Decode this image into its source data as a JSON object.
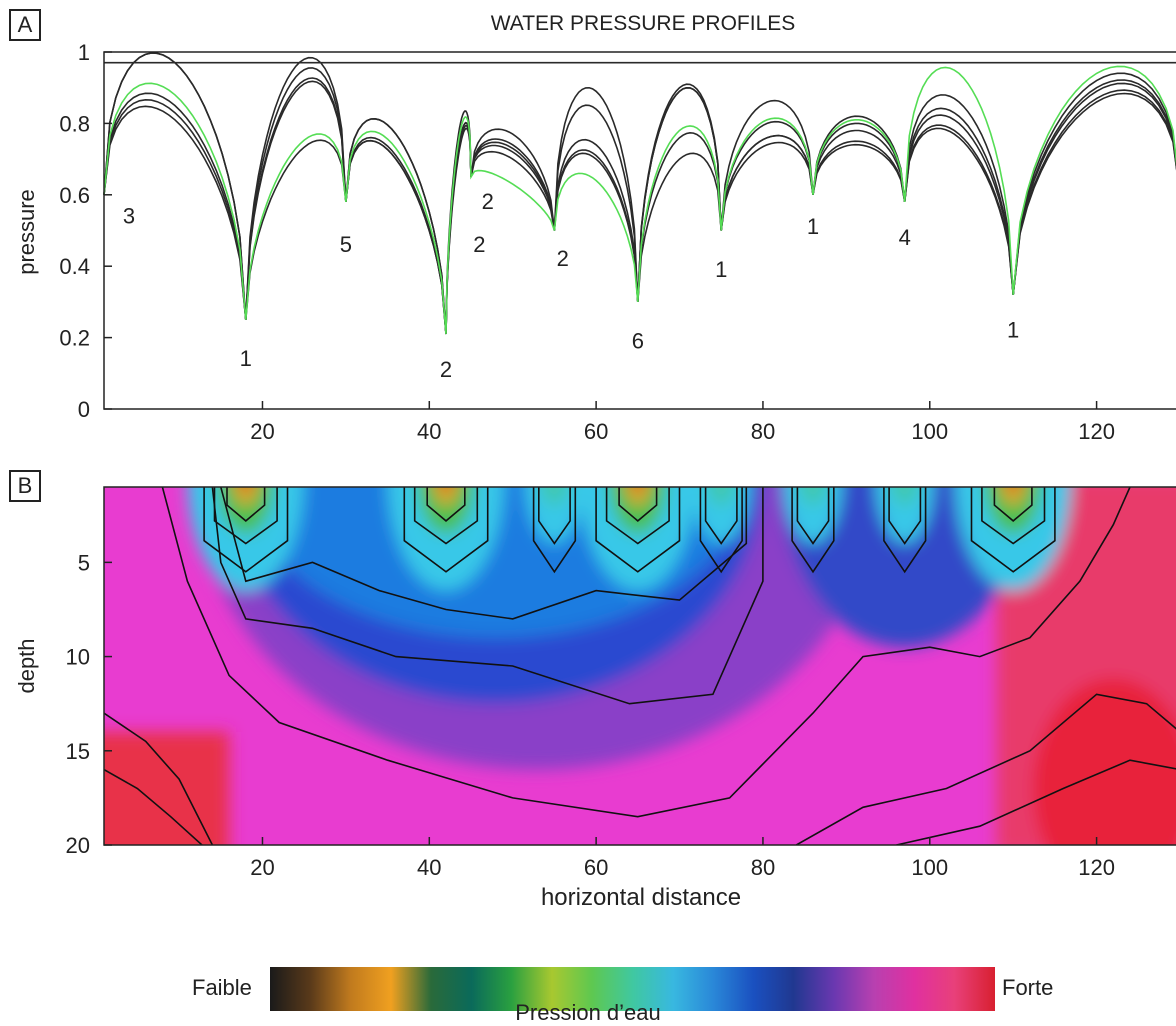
{
  "panel_a_label": "A",
  "panel_b_label": "B",
  "colors": {
    "profile_line": "#2a2a2a",
    "highlight_profile": "#55dd55",
    "contour": "#111111",
    "axis": "#222222"
  },
  "colorbar": {
    "low_label": "Faible",
    "high_label": "Forte",
    "title": "Pression d’eau",
    "stops": [
      "#1a1a1a",
      "#5a3a1a",
      "#c07a1e",
      "#f0a020",
      "#2a6a3a",
      "#0a6a5a",
      "#2aa040",
      "#a8c830",
      "#5ec850",
      "#40c8a0",
      "#38b8e0",
      "#2a88d8",
      "#1a50c0",
      "#203890",
      "#6a38b0",
      "#b840b0",
      "#e030a0",
      "#e8407a",
      "#d82030"
    ]
  },
  "chart_data": [
    {
      "type": "line",
      "title": "WATER PRESSURE PROFILES",
      "xlabel": "",
      "ylabel": "pressure",
      "xlim": [
        1,
        130
      ],
      "ylim": [
        0,
        1
      ],
      "xticks": [
        20,
        40,
        60,
        80,
        100,
        120
      ],
      "yticks": [
        0,
        0.2,
        0.4,
        0.6,
        0.8,
        1
      ],
      "ytick_labels": [
        "0",
        "0.2",
        "0.4",
        "0.6",
        "0.8",
        "1"
      ],
      "grid": false,
      "profile_peak_series": {
        "x_break": [
          1,
          18,
          30,
          42,
          45,
          55,
          65,
          75,
          86,
          97,
          110,
          130
        ],
        "y_break": [
          0.6,
          0.25,
          0.58,
          0.21,
          0.65,
          0.5,
          0.3,
          0.5,
          0.6,
          0.58,
          0.32,
          0.6
        ],
        "line_peaks": [
          [
            0.97,
            0.89,
            0.77,
            0.77,
            0.7,
            0.84,
            0.7,
            0.86,
            0.82,
            0.82,
            0.92
          ],
          [
            0.97,
            0.96,
            0.77,
            0.73,
            0.77,
            0.71,
            0.9,
            0.8,
            0.8,
            0.86,
            0.9
          ],
          [
            0.85,
            0.93,
            0.71,
            0.73,
            0.74,
            0.7,
            0.89,
            0.76,
            0.78,
            0.8,
            0.89
          ],
          [
            0.83,
            0.9,
            0.7,
            0.72,
            0.73,
            0.89,
            0.76,
            0.76,
            0.75,
            0.77,
            0.87
          ],
          [
            0.81,
            0.71,
            0.7,
            0.71,
            0.72,
            0.74,
            0.89,
            0.74,
            0.74,
            0.76,
            0.86
          ],
          [
            0.88,
            0.73,
            0.73,
            0.75,
            0.63,
            0.64,
            0.78,
            0.81,
            0.81,
            0.94,
            0.94
          ]
        ],
        "long_line": {
          "x": [
            1,
            130
          ],
          "y": [
            0.97,
            0.97
          ]
        }
      },
      "annotations": [
        {
          "text": "3",
          "x": 4,
          "y": 0.52
        },
        {
          "text": "1",
          "x": 18,
          "y": 0.12
        },
        {
          "text": "5",
          "x": 30,
          "y": 0.44
        },
        {
          "text": "2",
          "x": 42,
          "y": 0.09
        },
        {
          "text": "2",
          "x": 46,
          "y": 0.44
        },
        {
          "text": "2",
          "x": 47,
          "y": 0.56
        },
        {
          "text": "2",
          "x": 56,
          "y": 0.4
        },
        {
          "text": "6",
          "x": 65,
          "y": 0.17
        },
        {
          "text": "1",
          "x": 75,
          "y": 0.37
        },
        {
          "text": "1",
          "x": 86,
          "y": 0.49
        },
        {
          "text": "4",
          "x": 97,
          "y": 0.46
        },
        {
          "text": "1",
          "x": 110,
          "y": 0.2
        }
      ]
    },
    {
      "type": "heatmap",
      "title": "",
      "xlabel": "horizontal distance",
      "ylabel": "depth",
      "xlim": [
        1,
        130
      ],
      "ylim": [
        20,
        1
      ],
      "xticks": [
        20,
        40,
        60,
        80,
        100,
        120
      ],
      "yticks": [
        5,
        10,
        15,
        20
      ],
      "grid": false,
      "high_pressure_spots": [
        18,
        42,
        55,
        65,
        75,
        86,
        97,
        110
      ],
      "contour_levels_depth_at_x65": [
        3.5,
        5.5,
        8,
        12.5,
        18.5
      ]
    }
  ]
}
